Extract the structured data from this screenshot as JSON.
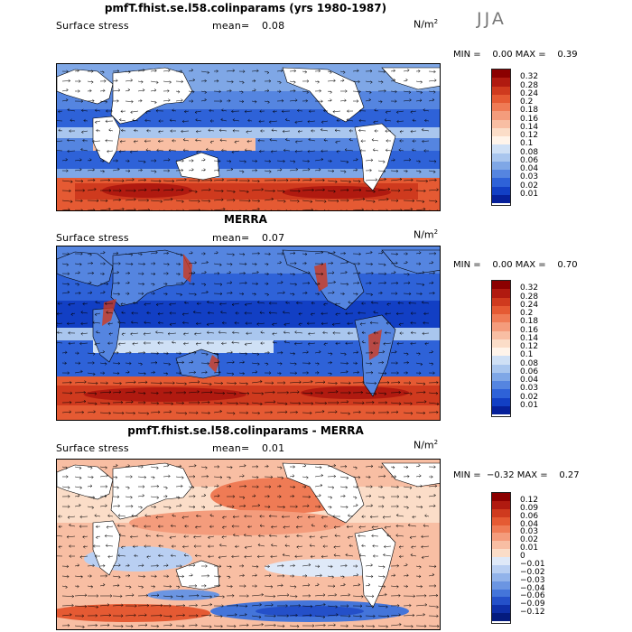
{
  "season": "JJA",
  "panels": [
    {
      "id": "model",
      "title": "pmfT.fhist.se.l58.colinparams (yrs 1980-1987)",
      "variable": "Surface stress",
      "mean_label": "mean=",
      "mean_value": "0.08",
      "units_base": "N/m",
      "units_exp": "2",
      "minmax": "MIN =    0.00 MAX =    0.39",
      "levels": [
        "0.32",
        "0.28",
        "0.24",
        "0.2",
        "0.18",
        "0.16",
        "0.14",
        "0.12",
        "0.1",
        "0.08",
        "0.06",
        "0.04",
        "0.03",
        "0.02",
        "0.01"
      ],
      "colors": [
        "#8b0000",
        "#b01a10",
        "#cf3a1e",
        "#e55a33",
        "#ef7b55",
        "#f49c7c",
        "#f8bea3",
        "#fbddc8",
        "#fff4ea",
        "#cfe0f5",
        "#a9c6ee",
        "#7fa7e6",
        "#5585e0",
        "#2e62d8",
        "#123fc4",
        "#06209a"
      ]
    },
    {
      "id": "merra",
      "title": "MERRA",
      "variable": "Surface stress",
      "mean_label": "mean=",
      "mean_value": "0.07",
      "units_base": "N/m",
      "units_exp": "2",
      "minmax": "MIN =    0.00 MAX =    0.70",
      "levels": [
        "0.32",
        "0.28",
        "0.24",
        "0.2",
        "0.18",
        "0.16",
        "0.14",
        "0.12",
        "0.1",
        "0.08",
        "0.06",
        "0.04",
        "0.03",
        "0.02",
        "0.01"
      ],
      "colors": [
        "#8b0000",
        "#b01a10",
        "#cf3a1e",
        "#e55a33",
        "#ef7b55",
        "#f49c7c",
        "#f8bea3",
        "#fbddc8",
        "#fff4ea",
        "#cfe0f5",
        "#a9c6ee",
        "#7fa7e6",
        "#5585e0",
        "#2e62d8",
        "#123fc4",
        "#06209a"
      ]
    },
    {
      "id": "diff",
      "title": "pmfT.fhist.se.l58.colinparams - MERRA",
      "variable": "Surface stress",
      "mean_label": "mean=",
      "mean_value": "0.01",
      "units_base": "N/m",
      "units_exp": "2",
      "minmax": "MIN =  −0.32 MAX =    0.27",
      "levels": [
        "0.12",
        "0.09",
        "0.06",
        "0.04",
        "0.03",
        "0.02",
        "0.01",
        "0",
        "−0.01",
        "−0.02",
        "−0.03",
        "−0.04",
        "−0.06",
        "−0.09",
        "−0.12"
      ],
      "colors": [
        "#8b0000",
        "#b01a10",
        "#cf3a1e",
        "#e55a33",
        "#ef7b55",
        "#f49c7c",
        "#f8bea3",
        "#fbddc8",
        "#dfe9f8",
        "#b9cff2",
        "#92b3ea",
        "#6b95e2",
        "#4475da",
        "#2450c9",
        "#0e2fa8",
        "#041b7e"
      ]
    }
  ]
}
